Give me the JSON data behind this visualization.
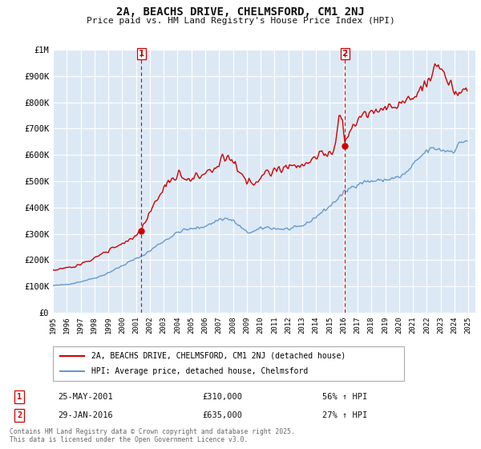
{
  "title": "2A, BEACHS DRIVE, CHELMSFORD, CM1 2NJ",
  "subtitle": "Price paid vs. HM Land Registry's House Price Index (HPI)",
  "background_color": "#ffffff",
  "plot_bg_color": "#dce9f5",
  "grid_color": "#ffffff",
  "sale1_date": "25-MAY-2001",
  "sale1_price": 310000,
  "sale1_label": "56% ↑ HPI",
  "sale2_date": "29-JAN-2016",
  "sale2_price": 635000,
  "sale2_label": "27% ↑ HPI",
  "legend_line1": "2A, BEACHS DRIVE, CHELMSFORD, CM1 2NJ (detached house)",
  "legend_line2": "HPI: Average price, detached house, Chelmsford",
  "footer": "Contains HM Land Registry data © Crown copyright and database right 2025.\nThis data is licensed under the Open Government Licence v3.0.",
  "red_color": "#cc0000",
  "blue_color": "#6699cc",
  "vline_color": "#cc0000",
  "ylim": [
    0,
    1000000
  ],
  "yticks": [
    0,
    100000,
    200000,
    300000,
    400000,
    500000,
    600000,
    700000,
    800000,
    900000,
    1000000
  ],
  "ytick_labels": [
    "£0",
    "£100K",
    "£200K",
    "£300K",
    "£400K",
    "£500K",
    "£600K",
    "£700K",
    "£800K",
    "£900K",
    "£1M"
  ],
  "sale1_x": 2001.38,
  "sale2_x": 2016.08,
  "xtick_years": [
    1995,
    1996,
    1997,
    1998,
    1999,
    2000,
    2001,
    2002,
    2003,
    2004,
    2005,
    2006,
    2007,
    2008,
    2009,
    2010,
    2011,
    2012,
    2013,
    2014,
    2015,
    2016,
    2017,
    2018,
    2019,
    2020,
    2021,
    2022,
    2023,
    2024,
    2025
  ]
}
